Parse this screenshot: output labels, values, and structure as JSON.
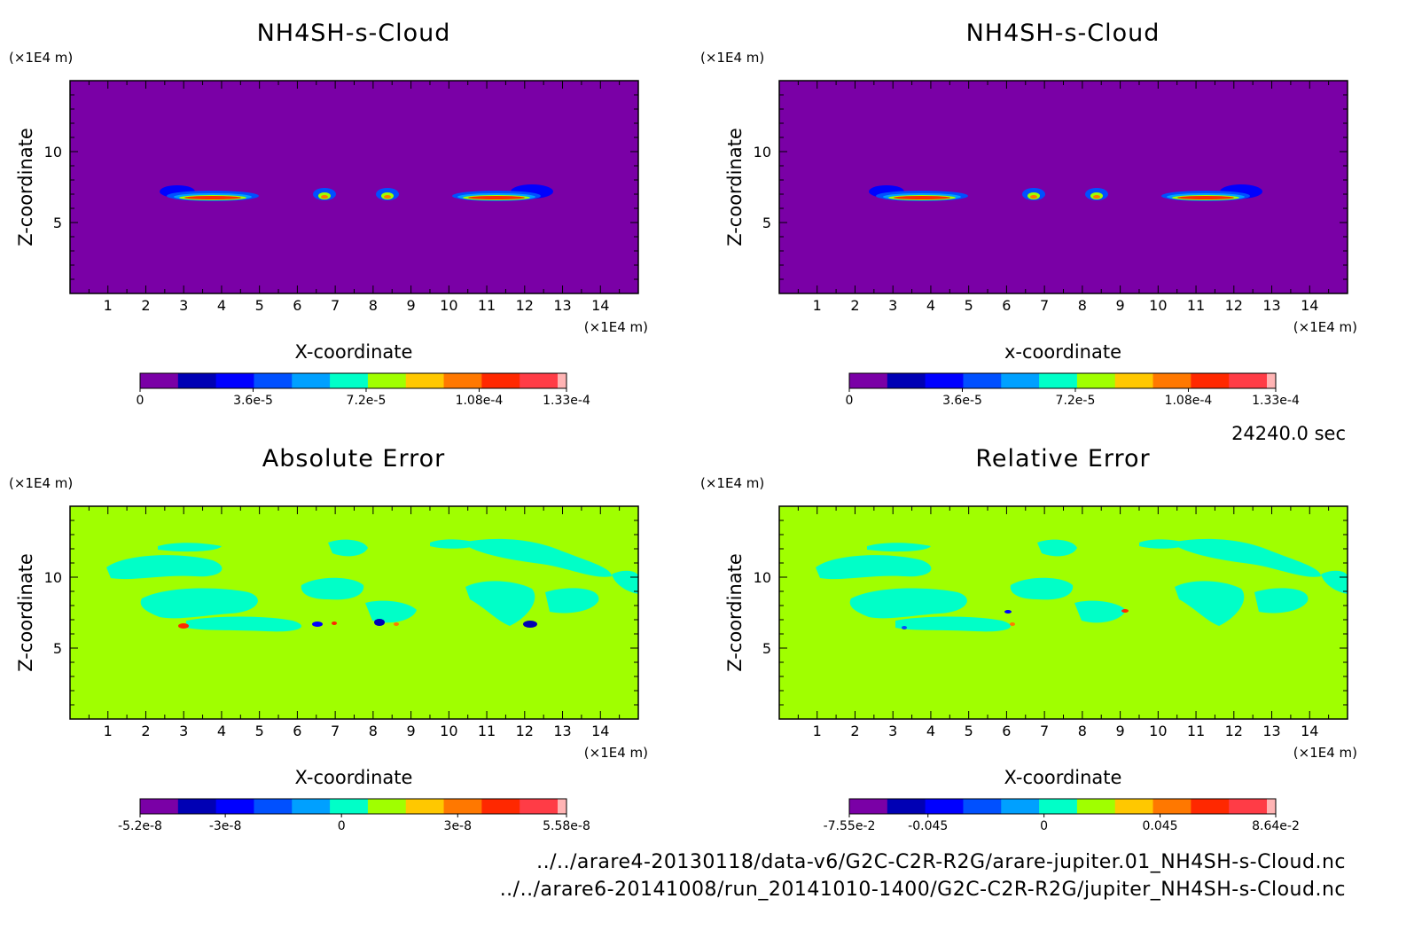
{
  "time_label": "24240.0 sec",
  "footer": {
    "file1": "../../arare4-20130118/data-v6/G2C-C2R-R2G/arare-jupiter.01_NH4SH-s-Cloud.nc",
    "file2": "../../arare6-20141008/run_20141010-1400/G2C-C2R-R2G/jupiter_NH4SH-s-Cloud.nc"
  },
  "colors": {
    "cloud_scale": [
      "#7a00a6",
      "#0000b4",
      "#0000ff",
      "#0050ff",
      "#00a0ff",
      "#00ffc8",
      "#a0ff00",
      "#ffc800",
      "#ff7800",
      "#ff2800",
      "#ff3c46",
      "#ffb4b4"
    ],
    "diverging_scale": [
      "#7a00a6",
      "#0000b4",
      "#0000ff",
      "#0050ff",
      "#00a0ff",
      "#00ffc8",
      "#a0ff00",
      "#ffc800",
      "#ff7800",
      "#ff2800",
      "#ff3c46",
      "#ffb4b4"
    ],
    "cloud_background": "#7a00a6",
    "error_background": "#a0ff00"
  },
  "chart_data": [
    {
      "type": "heatmap",
      "title": "NH4SH-s-Cloud",
      "xlabel": "X-coordinate",
      "ylabel": "Z-coordinate",
      "x_unit": "(×1E4 m)",
      "y_unit": "(×1E4 m)",
      "xlim": [
        0,
        15
      ],
      "ylim": [
        0,
        15
      ],
      "x_ticks": [
        "1",
        "2",
        "3",
        "4",
        "5",
        "6",
        "7",
        "8",
        "9",
        "10",
        "11",
        "12",
        "13",
        "14"
      ],
      "y_ticks": [
        "5",
        "10"
      ],
      "colorbar_ticks": [
        "0",
        "3.6e-5",
        "7.2e-5",
        "1.08e-4",
        "1.33e-4"
      ],
      "value_range": [
        0,
        0.000133
      ],
      "features": [
        {
          "x_range": [
            2.4,
            5.0
          ],
          "z": 6.8,
          "peak": 0.00012
        },
        {
          "x_range": [
            6.5,
            7.0
          ],
          "z": 6.8,
          "peak": 0.00011
        },
        {
          "x_range": [
            8.1,
            8.6
          ],
          "z": 6.8,
          "peak": 0.00011
        },
        {
          "x_range": [
            10.1,
            12.8
          ],
          "z": 6.8,
          "peak": 0.00012
        }
      ]
    },
    {
      "type": "heatmap",
      "title": "NH4SH-s-Cloud",
      "xlabel": "x-coordinate",
      "ylabel": "Z-coordinate",
      "x_unit": "(×1E4 m)",
      "y_unit": "(×1E4 m)",
      "xlim": [
        0,
        15
      ],
      "ylim": [
        0,
        15
      ],
      "x_ticks": [
        "1",
        "2",
        "3",
        "4",
        "5",
        "6",
        "7",
        "8",
        "9",
        "10",
        "11",
        "12",
        "13",
        "14"
      ],
      "y_ticks": [
        "5",
        "10"
      ],
      "colorbar_ticks": [
        "0",
        "3.6e-5",
        "7.2e-5",
        "1.08e-4",
        "1.33e-4"
      ],
      "value_range": [
        0,
        0.000133
      ],
      "features": [
        {
          "x_range": [
            2.4,
            5.0
          ],
          "z": 6.8,
          "peak": 0.00012
        },
        {
          "x_range": [
            6.5,
            7.0
          ],
          "z": 6.8,
          "peak": 0.00011
        },
        {
          "x_range": [
            8.1,
            8.6
          ],
          "z": 6.8,
          "peak": 0.00011
        },
        {
          "x_range": [
            10.1,
            12.8
          ],
          "z": 6.8,
          "peak": 0.00012
        }
      ]
    },
    {
      "type": "heatmap",
      "title": "Absolute Error",
      "xlabel": "X-coordinate",
      "ylabel": "Z-coordinate",
      "x_unit": "(×1E4 m)",
      "y_unit": "(×1E4 m)",
      "xlim": [
        0,
        15
      ],
      "ylim": [
        0,
        15
      ],
      "x_ticks": [
        "1",
        "2",
        "3",
        "4",
        "5",
        "6",
        "7",
        "8",
        "9",
        "10",
        "11",
        "12",
        "13",
        "14"
      ],
      "y_ticks": [
        "5",
        "10"
      ],
      "colorbar_ticks": [
        "-5.2e-8",
        "-3e-8",
        "0",
        "3e-8",
        "5.58e-8"
      ],
      "value_range": [
        -5.2e-08,
        5.58e-08
      ]
    },
    {
      "type": "heatmap",
      "title": "Relative Error",
      "xlabel": "X-coordinate",
      "ylabel": "Z-coordinate",
      "x_unit": "(×1E4 m)",
      "y_unit": "(×1E4 m)",
      "xlim": [
        0,
        15
      ],
      "ylim": [
        0,
        15
      ],
      "x_ticks": [
        "1",
        "2",
        "3",
        "4",
        "5",
        "6",
        "7",
        "8",
        "9",
        "10",
        "11",
        "12",
        "13",
        "14"
      ],
      "y_ticks": [
        "5",
        "10"
      ],
      "colorbar_ticks": [
        "-7.55e-2",
        "-0.045",
        "0",
        "0.045",
        "8.64e-2"
      ],
      "value_range": [
        -0.0755,
        0.0864
      ]
    }
  ]
}
